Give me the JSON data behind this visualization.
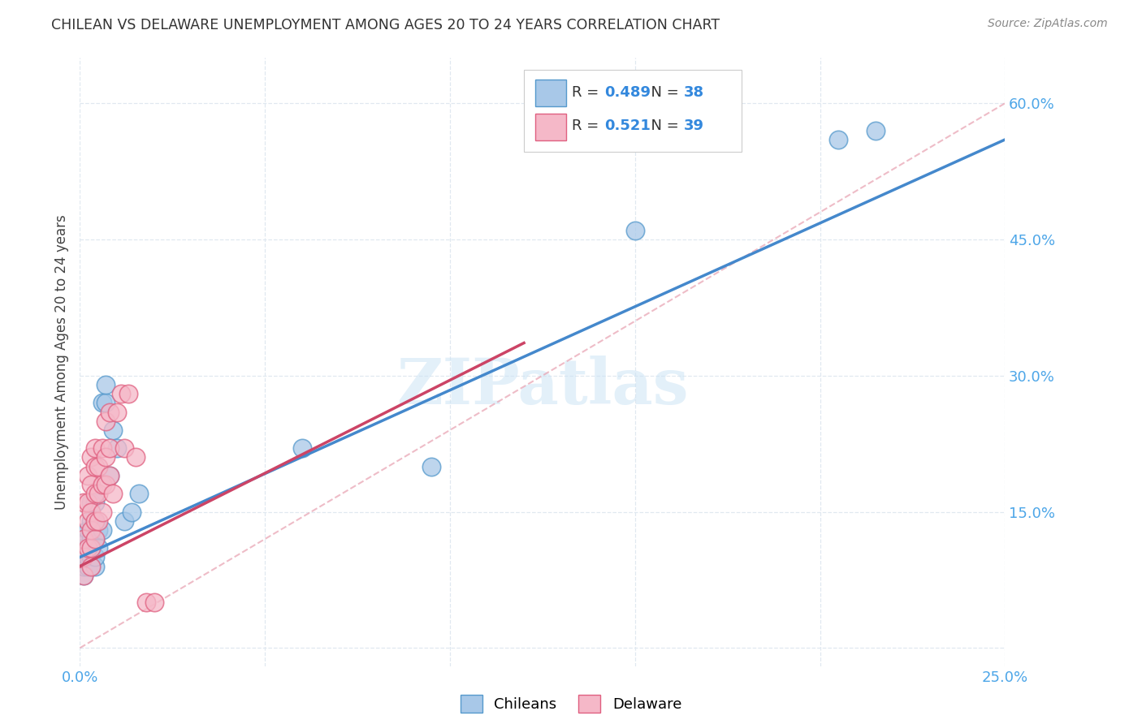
{
  "title": "CHILEAN VS DELAWARE UNEMPLOYMENT AMONG AGES 20 TO 24 YEARS CORRELATION CHART",
  "source": "Source: ZipAtlas.com",
  "ylabel": "Unemployment Among Ages 20 to 24 years",
  "chileans_R": 0.489,
  "chileans_N": 38,
  "delaware_R": 0.521,
  "delaware_N": 39,
  "chilean_fill": "#a8c8e8",
  "chilean_edge": "#5599cc",
  "delaware_fill": "#f5b8c8",
  "delaware_edge": "#e06080",
  "chilean_line": "#4488cc",
  "delaware_line": "#cc4466",
  "diagonal_color": "#e8a0b0",
  "grid_color": "#e0e8f0",
  "xlim": [
    0.0,
    0.25
  ],
  "ylim": [
    -0.02,
    0.65
  ],
  "xtick_vals": [
    0.0,
    0.05,
    0.1,
    0.15,
    0.2,
    0.25
  ],
  "xtick_labels": [
    "0.0%",
    "",
    "",
    "",
    "",
    "25.0%"
  ],
  "ytick_vals": [
    0.0,
    0.15,
    0.3,
    0.45,
    0.6
  ],
  "ytick_labels": [
    "",
    "15.0%",
    "30.0%",
    "45.0%",
    "60.0%"
  ],
  "chileans_x": [
    0.001,
    0.001,
    0.001,
    0.001,
    0.002,
    0.002,
    0.002,
    0.002,
    0.002,
    0.003,
    0.003,
    0.003,
    0.003,
    0.003,
    0.003,
    0.003,
    0.004,
    0.004,
    0.004,
    0.004,
    0.004,
    0.005,
    0.005,
    0.006,
    0.006,
    0.007,
    0.007,
    0.008,
    0.009,
    0.01,
    0.012,
    0.014,
    0.016,
    0.06,
    0.095,
    0.15,
    0.205,
    0.215
  ],
  "chileans_y": [
    0.08,
    0.09,
    0.1,
    0.11,
    0.09,
    0.1,
    0.11,
    0.12,
    0.13,
    0.09,
    0.1,
    0.11,
    0.12,
    0.13,
    0.14,
    0.16,
    0.09,
    0.1,
    0.12,
    0.14,
    0.16,
    0.11,
    0.13,
    0.13,
    0.27,
    0.27,
    0.29,
    0.19,
    0.24,
    0.22,
    0.14,
    0.15,
    0.17,
    0.22,
    0.2,
    0.46,
    0.56,
    0.57
  ],
  "delawares_x": [
    0.001,
    0.001,
    0.001,
    0.001,
    0.002,
    0.002,
    0.002,
    0.002,
    0.003,
    0.003,
    0.003,
    0.003,
    0.003,
    0.003,
    0.004,
    0.004,
    0.004,
    0.004,
    0.004,
    0.005,
    0.005,
    0.005,
    0.006,
    0.006,
    0.006,
    0.007,
    0.007,
    0.007,
    0.008,
    0.008,
    0.008,
    0.009,
    0.01,
    0.011,
    0.012,
    0.013,
    0.015,
    0.018,
    0.02
  ],
  "delawares_y": [
    0.08,
    0.1,
    0.12,
    0.16,
    0.11,
    0.14,
    0.16,
    0.19,
    0.09,
    0.11,
    0.13,
    0.15,
    0.18,
    0.21,
    0.12,
    0.14,
    0.17,
    0.2,
    0.22,
    0.14,
    0.17,
    0.2,
    0.15,
    0.18,
    0.22,
    0.18,
    0.21,
    0.25,
    0.19,
    0.22,
    0.26,
    0.17,
    0.26,
    0.28,
    0.22,
    0.28,
    0.21,
    0.05,
    0.05
  ]
}
